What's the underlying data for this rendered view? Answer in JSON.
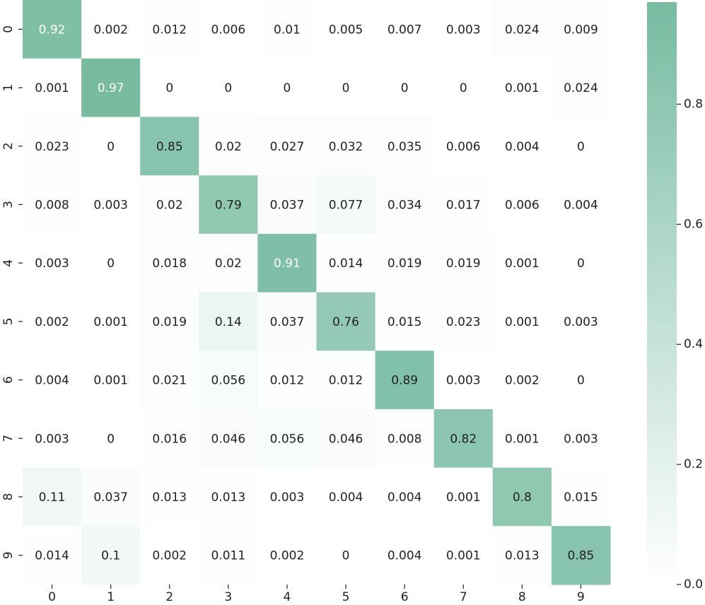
{
  "chart_data": {
    "type": "heatmap",
    "x_categories": [
      "0",
      "1",
      "2",
      "3",
      "4",
      "5",
      "6",
      "7",
      "8",
      "9"
    ],
    "y_categories": [
      "0",
      "1",
      "2",
      "3",
      "4",
      "5",
      "6",
      "7",
      "8",
      "9"
    ],
    "values": [
      [
        0.92,
        0.002,
        0.012,
        0.006,
        0.01,
        0.005,
        0.007,
        0.003,
        0.024,
        0.009
      ],
      [
        0.001,
        0.97,
        0,
        0,
        0,
        0,
        0,
        0,
        0.001,
        0.024
      ],
      [
        0.023,
        0,
        0.85,
        0.02,
        0.027,
        0.032,
        0.035,
        0.006,
        0.004,
        0
      ],
      [
        0.008,
        0.003,
        0.02,
        0.79,
        0.037,
        0.077,
        0.034,
        0.017,
        0.006,
        0.004
      ],
      [
        0.003,
        0,
        0.018,
        0.02,
        0.91,
        0.014,
        0.019,
        0.019,
        0.001,
        0
      ],
      [
        0.002,
        0.001,
        0.019,
        0.14,
        0.037,
        0.76,
        0.015,
        0.023,
        0.001,
        0.003
      ],
      [
        0.004,
        0.001,
        0.021,
        0.056,
        0.012,
        0.012,
        0.89,
        0.003,
        0.002,
        0
      ],
      [
        0.003,
        0,
        0.016,
        0.046,
        0.056,
        0.046,
        0.008,
        0.82,
        0.001,
        0.003
      ],
      [
        0.11,
        0.037,
        0.013,
        0.013,
        0.003,
        0.004,
        0.004,
        0.001,
        0.8,
        0.015
      ],
      [
        0.014,
        0.1,
        0.002,
        0.011,
        0.002,
        0,
        0.004,
        0.001,
        0.013,
        0.85
      ]
    ],
    "colors": [
      "#ffffff",
      "#77bba1"
    ],
    "clim": [
      0,
      0.97
    ],
    "cticks": [
      {
        "value": 0,
        "label": "0.0"
      },
      0.2,
      0.4,
      0.6,
      0.8
    ]
  }
}
